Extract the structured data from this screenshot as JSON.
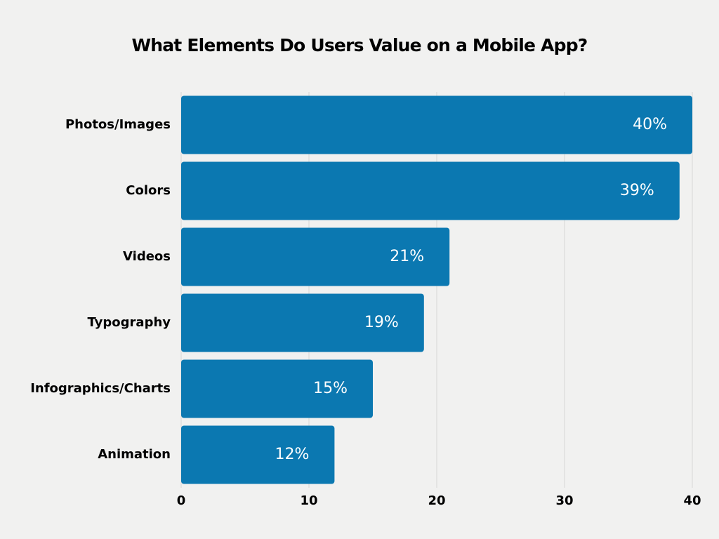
{
  "chart_data": {
    "type": "hbar",
    "title": "What Elements Do Users Value on a Mobile App?",
    "categories": [
      "Photos/Images",
      "Colors",
      "Videos",
      "Typography",
      "Infographics/Charts",
      "Animation"
    ],
    "values": [
      40,
      39,
      21,
      19,
      15,
      12
    ],
    "value_labels": [
      "40%",
      "39%",
      "21%",
      "19%",
      "15%",
      "12%"
    ],
    "color": "#0b78b1",
    "xlim": [
      0,
      40
    ],
    "xticks": [
      0,
      10,
      20,
      30,
      40
    ],
    "grid": true
  }
}
